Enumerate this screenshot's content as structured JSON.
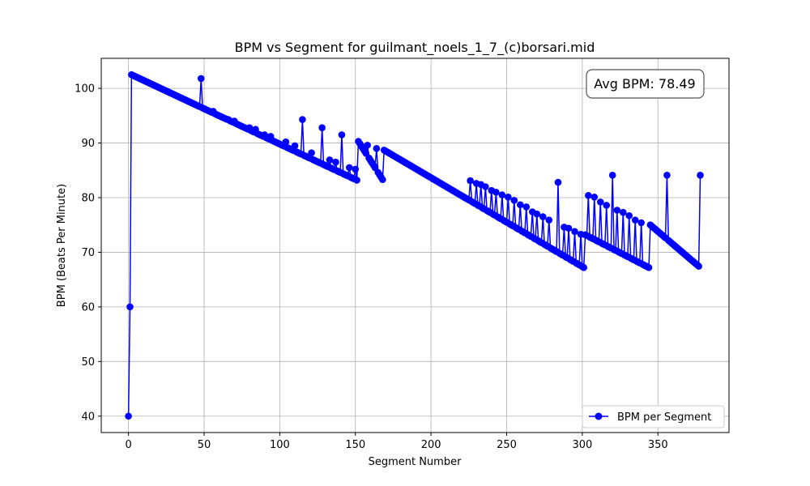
{
  "chart_data": {
    "type": "line",
    "title": "BPM vs Segment for guilmant_noels_1_7_(c)borsari.mid",
    "xlabel": "Segment Number",
    "ylabel": "BPM (Beats Per Minute)",
    "xlim": [
      -18,
      397
    ],
    "ylim": [
      37,
      105.5
    ],
    "xticks": [
      0,
      50,
      100,
      150,
      200,
      250,
      300,
      350
    ],
    "yticks": [
      40,
      50,
      60,
      70,
      80,
      90,
      100
    ],
    "grid": true,
    "legend_position": "lower right",
    "annotation": "Avg BPM: 78.49",
    "series": [
      {
        "name": "BPM per Segment",
        "color": "#0000ff",
        "marker": "circle",
        "base_segments": [
          {
            "from_x": 0,
            "to_x": 1,
            "points": [
              [
                0,
                40.0
              ],
              [
                1,
                60.0
              ]
            ]
          },
          {
            "from_x": 2,
            "to_x": 151,
            "start_y": 102.5,
            "end_y": 83.2
          },
          {
            "from_x": 152,
            "to_x": 168,
            "start_y": 90.3,
            "end_y": 83.3
          },
          {
            "from_x": 169,
            "to_x": 301,
            "start_y": 88.7,
            "end_y": 67.2
          },
          {
            "from_x": 302,
            "to_x": 344,
            "start_y": 73.2,
            "end_y": 67.2
          },
          {
            "from_x": 345,
            "to_x": 378,
            "start_y": 75.0,
            "end_y": 67.2
          }
        ],
        "spikes": [
          [
            48,
            101.8
          ],
          [
            56,
            95.8
          ],
          [
            66,
            94.3
          ],
          [
            70,
            94.0
          ],
          [
            80,
            92.8
          ],
          [
            84,
            92.5
          ],
          [
            90,
            91.5
          ],
          [
            94,
            91.2
          ],
          [
            104,
            90.2
          ],
          [
            110,
            89.5
          ],
          [
            115,
            94.3
          ],
          [
            121,
            88.2
          ],
          [
            128,
            92.8
          ],
          [
            133,
            86.9
          ],
          [
            137,
            86.5
          ],
          [
            141,
            91.5
          ],
          [
            146,
            85.5
          ],
          [
            150,
            85.2
          ],
          [
            158,
            89.6
          ],
          [
            164,
            89.0
          ],
          [
            226,
            83.1
          ],
          [
            230,
            82.6
          ],
          [
            233,
            82.4
          ],
          [
            236,
            82.0
          ],
          [
            240,
            81.3
          ],
          [
            243,
            81.0
          ],
          [
            247,
            80.5
          ],
          [
            251,
            80.1
          ],
          [
            255,
            79.5
          ],
          [
            259,
            78.7
          ],
          [
            263,
            78.3
          ],
          [
            267,
            77.4
          ],
          [
            270,
            77.0
          ],
          [
            274,
            76.5
          ],
          [
            278,
            75.9
          ],
          [
            284,
            82.8
          ],
          [
            288,
            74.6
          ],
          [
            291,
            74.4
          ],
          [
            295,
            73.8
          ],
          [
            299,
            73.3
          ],
          [
            304,
            80.4
          ],
          [
            308,
            80.1
          ],
          [
            312,
            79.2
          ],
          [
            316,
            78.6
          ],
          [
            320,
            84.1
          ],
          [
            323,
            77.7
          ],
          [
            327,
            77.3
          ],
          [
            331,
            76.7
          ],
          [
            335,
            75.9
          ],
          [
            339,
            75.4
          ],
          [
            356,
            84.1
          ],
          [
            378,
            84.1
          ]
        ]
      }
    ]
  }
}
